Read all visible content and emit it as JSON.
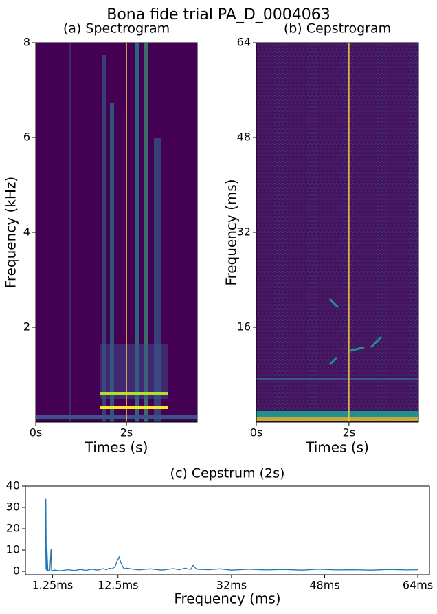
{
  "title": "Bona fide trial PA_D_0004063",
  "chart_data": [
    {
      "type": "spectrogram",
      "title": "(a) Spectrogram",
      "xlabel": "Times (s)",
      "ylabel": "Frequency (kHz)",
      "xlim": [
        0,
        3.56
      ],
      "ylim": [
        0,
        8
      ],
      "xticks": [
        {
          "value": 0,
          "label": "0s"
        },
        {
          "value": 2,
          "label": "2s"
        }
      ],
      "yticks": [
        2,
        4,
        6,
        8
      ],
      "marker_x": 2,
      "marker_color": "#f5c542"
    },
    {
      "type": "cepstrogram",
      "title": "(b) Cepstrogram",
      "xlabel": "Times (s)",
      "ylabel": "Frequency (ms)",
      "xlim": [
        0,
        3.5
      ],
      "ylim": [
        0,
        64
      ],
      "xticks": [
        {
          "value": 0,
          "label": "0s"
        },
        {
          "value": 2,
          "label": "2s"
        }
      ],
      "yticks": [
        16,
        32,
        48,
        64
      ],
      "marker_x": 2,
      "marker_color": "#f5c542"
    },
    {
      "type": "line",
      "title": "(c) Cepstrum (2s)",
      "xlabel": "Frequency (ms)",
      "color": "#1f77b4",
      "xlim": [
        -3.4,
        66
      ],
      "ylim": [
        -1.6,
        40
      ],
      "xticks": [
        {
          "value": 1.25,
          "label": "1.25ms"
        },
        {
          "value": 12.5,
          "label": "12.5ms"
        },
        {
          "value": 32,
          "label": "32ms"
        },
        {
          "value": 48,
          "label": "48ms"
        },
        {
          "value": 64,
          "label": "64ms"
        }
      ],
      "yticks": [
        0,
        10,
        20,
        30,
        40
      ],
      "x": [
        0,
        0.1,
        0.2,
        0.3,
        0.45,
        0.6,
        0.8,
        1.0,
        1.1,
        1.3,
        1.6,
        2.5,
        4,
        5,
        6,
        7,
        8,
        9,
        10,
        10.5,
        11,
        11.5,
        12,
        12.3,
        12.7,
        13,
        13.5,
        14,
        16,
        18,
        20,
        22,
        23,
        24,
        25,
        25.4,
        26,
        28,
        30,
        32,
        35,
        38,
        41,
        44,
        47,
        50,
        53,
        56,
        59,
        62,
        64
      ],
      "values": [
        1,
        34,
        0.5,
        11,
        0.4,
        0.5,
        0.6,
        10.5,
        0.5,
        0.4,
        0.6,
        0.3,
        0.8,
        0.4,
        0.9,
        0.5,
        1,
        0.6,
        1.3,
        0.8,
        1.5,
        1.2,
        2.2,
        4.5,
        6.8,
        4,
        1.2,
        1.5,
        0.7,
        1.2,
        0.6,
        1.3,
        0.8,
        1.5,
        0.9,
        2.8,
        1,
        0.8,
        1.2,
        0.6,
        1,
        0.7,
        0.9,
        0.6,
        1,
        0.7,
        0.8,
        0.6,
        0.9,
        0.7,
        0.8
      ]
    }
  ]
}
